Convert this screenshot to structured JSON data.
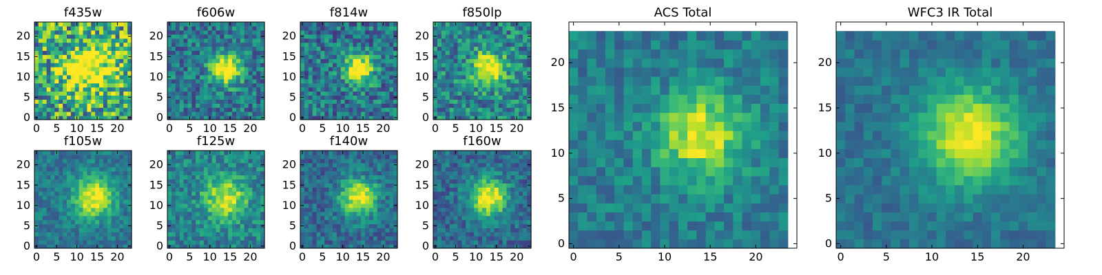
{
  "chart_data": [
    {
      "type": "heatmap",
      "title": "f435w",
      "colormap": "viridis",
      "grid": false,
      "size": [
        24,
        24
      ],
      "xlim": [
        -0.5,
        23.5
      ],
      "ylim": [
        -0.5,
        23.5
      ],
      "xticks": [
        0,
        5,
        10,
        15,
        20
      ],
      "yticks": [
        0,
        5,
        10,
        15,
        20
      ],
      "source_center": [
        13,
        12
      ],
      "source_peak": 0.6,
      "source_width": 4,
      "background": 0.6,
      "noise": 0.38,
      "seed": 11
    },
    {
      "type": "heatmap",
      "title": "f606w",
      "colormap": "viridis",
      "grid": false,
      "size": [
        24,
        24
      ],
      "xlim": [
        -0.5,
        23.5
      ],
      "ylim": [
        -0.5,
        23.5
      ],
      "xticks": [
        0,
        5,
        10,
        15,
        20
      ],
      "yticks": [
        0,
        5,
        10,
        15,
        20
      ],
      "source_center": [
        14,
        12
      ],
      "source_peak": 0.75,
      "source_width": 2.6,
      "background": 0.4,
      "noise": 0.22,
      "seed": 23
    },
    {
      "type": "heatmap",
      "title": "f814w",
      "colormap": "viridis",
      "grid": false,
      "size": [
        24,
        24
      ],
      "xlim": [
        -0.5,
        23.5
      ],
      "ylim": [
        -0.5,
        23.5
      ],
      "xticks": [
        0,
        5,
        10,
        15,
        20
      ],
      "yticks": [
        0,
        5,
        10,
        15,
        20
      ],
      "source_center": [
        14,
        12
      ],
      "source_peak": 0.75,
      "source_width": 2.4,
      "background": 0.4,
      "noise": 0.24,
      "seed": 37
    },
    {
      "type": "heatmap",
      "title": "f850lp",
      "colormap": "viridis",
      "grid": false,
      "size": [
        24,
        24
      ],
      "xlim": [
        -0.5,
        23.5
      ],
      "ylim": [
        -0.5,
        23.5
      ],
      "xticks": [
        0,
        5,
        10,
        15,
        20
      ],
      "yticks": [
        0,
        5,
        10,
        15,
        20
      ],
      "source_center": [
        13,
        12
      ],
      "source_peak": 0.65,
      "source_width": 2.8,
      "background": 0.45,
      "noise": 0.24,
      "seed": 41
    },
    {
      "type": "heatmap",
      "title": "f105w",
      "colormap": "viridis",
      "grid": false,
      "size": [
        24,
        24
      ],
      "xlim": [
        -0.5,
        23.5
      ],
      "ylim": [
        -0.5,
        23.5
      ],
      "xticks": [
        0,
        5,
        10,
        15,
        20
      ],
      "yticks": [
        0,
        5,
        10,
        15,
        20
      ],
      "source_center": [
        14,
        12
      ],
      "source_peak": 0.6,
      "source_width": 3.6,
      "background": 0.4,
      "noise": 0.14,
      "seed": 53
    },
    {
      "type": "heatmap",
      "title": "f125w",
      "colormap": "viridis",
      "grid": false,
      "size": [
        24,
        24
      ],
      "xlim": [
        -0.5,
        23.5
      ],
      "ylim": [
        -0.5,
        23.5
      ],
      "xticks": [
        0,
        5,
        10,
        15,
        20
      ],
      "yticks": [
        0,
        5,
        10,
        15,
        20
      ],
      "source_center": [
        14,
        12
      ],
      "source_peak": 0.5,
      "source_width": 3.6,
      "background": 0.45,
      "noise": 0.18,
      "seed": 67
    },
    {
      "type": "heatmap",
      "title": "f140w",
      "colormap": "viridis",
      "grid": false,
      "size": [
        24,
        24
      ],
      "xlim": [
        -0.5,
        23.5
      ],
      "ylim": [
        -0.5,
        23.5
      ],
      "xticks": [
        0,
        5,
        10,
        15,
        20
      ],
      "yticks": [
        0,
        5,
        10,
        15,
        20
      ],
      "source_center": [
        14,
        12
      ],
      "source_peak": 0.65,
      "source_width": 3.2,
      "background": 0.35,
      "noise": 0.16,
      "seed": 71
    },
    {
      "type": "heatmap",
      "title": "f160w",
      "colormap": "viridis",
      "grid": false,
      "size": [
        24,
        24
      ],
      "xlim": [
        -0.5,
        23.5
      ],
      "ylim": [
        -0.5,
        23.5
      ],
      "xticks": [
        0,
        5,
        10,
        15,
        20
      ],
      "yticks": [
        0,
        5,
        10,
        15,
        20
      ],
      "source_center": [
        13,
        12
      ],
      "source_peak": 0.7,
      "source_width": 3.2,
      "background": 0.35,
      "noise": 0.16,
      "seed": 83
    },
    {
      "type": "heatmap",
      "title": "ACS Total",
      "colormap": "viridis",
      "grid": false,
      "size": [
        24,
        24
      ],
      "xlim": [
        -0.5,
        24.5
      ],
      "ylim": [
        -0.5,
        24.5
      ],
      "xticks": [
        0,
        5,
        10,
        15,
        20
      ],
      "yticks": [
        0,
        5,
        10,
        15,
        20
      ],
      "source_center": [
        14,
        12
      ],
      "source_peak": 0.55,
      "source_width": 3.2,
      "background": 0.42,
      "noise": 0.14,
      "seed": 97
    },
    {
      "type": "heatmap",
      "title": "WFC3 IR Total",
      "colormap": "viridis",
      "grid": false,
      "size": [
        24,
        24
      ],
      "xlim": [
        -0.5,
        24.5
      ],
      "ylim": [
        -0.5,
        24.5
      ],
      "xticks": [
        0,
        5,
        10,
        15,
        20
      ],
      "yticks": [
        0,
        5,
        10,
        15,
        20
      ],
      "source_center": [
        14,
        12
      ],
      "source_peak": 0.6,
      "source_width": 3.8,
      "background": 0.38,
      "noise": 0.1,
      "seed": 101
    }
  ]
}
